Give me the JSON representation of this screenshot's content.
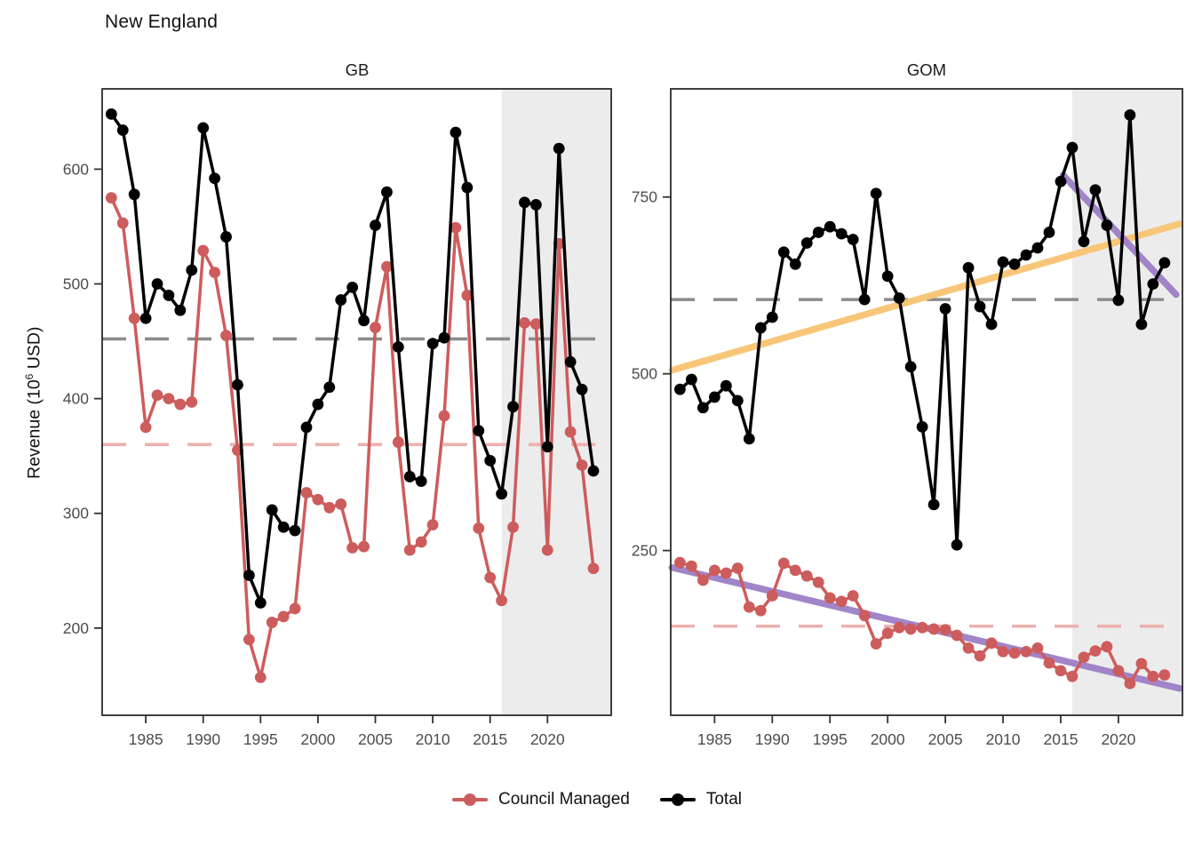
{
  "title": "New England",
  "y_axis_label": {
    "prefix": "Revenue (10",
    "sup": "6",
    "suffix": " USD)"
  },
  "legend": [
    {
      "label": "Council Managed",
      "color": "#CD5C5C"
    },
    {
      "label": "Total",
      "color": "#000000"
    }
  ],
  "colors": {
    "council": "#CD5C5C",
    "total": "#000000",
    "council_mean_dash": "#EEB0AF",
    "total_mean_dash": "#8C8C8C",
    "trend_orange": "#F8C471",
    "trend_purple": "#9D7FC7",
    "highlight_fill": "#ECECEC",
    "panel_border": "#2B2B2B",
    "tick_text": "#4D4D4D"
  },
  "chart_data": [
    {
      "type": "line",
      "facet": "GB",
      "title": "GB",
      "xlabel": "",
      "ylabel": "Revenue (10^6 USD)",
      "x_ticks": [
        1985,
        1990,
        1995,
        2000,
        2005,
        2010,
        2015,
        2020
      ],
      "y_ticks": [
        200,
        300,
        400,
        500,
        600
      ],
      "xlim": [
        1981.2,
        2025.55
      ],
      "ylim": [
        124,
        670
      ],
      "grid": false,
      "legend_position": "bottom",
      "highlight_region": {
        "from": 2016,
        "to": 2025.55
      },
      "x": [
        1982,
        1983,
        1984,
        1985,
        1986,
        1987,
        1988,
        1989,
        1990,
        1991,
        1992,
        1993,
        1994,
        1995,
        1996,
        1997,
        1998,
        1999,
        2000,
        2001,
        2002,
        2003,
        2004,
        2005,
        2006,
        2007,
        2008,
        2009,
        2010,
        2011,
        2012,
        2013,
        2014,
        2015,
        2016,
        2017,
        2018,
        2019,
        2020,
        2021,
        2022,
        2023,
        2024
      ],
      "series": [
        {
          "name": "Council Managed",
          "values": [
            575,
            553,
            470,
            375,
            403,
            400,
            395,
            397,
            529,
            510,
            455,
            355,
            190,
            157,
            205,
            210,
            217,
            318,
            312,
            305,
            308,
            270,
            271,
            462,
            515,
            362,
            268,
            275,
            290,
            385,
            549,
            490,
            287,
            244,
            224,
            288,
            466,
            465,
            268,
            535,
            371,
            342,
            252
          ]
        },
        {
          "name": "Total",
          "values": [
            648,
            634,
            578,
            470,
            500,
            490,
            477,
            512,
            636,
            592,
            541,
            412,
            246,
            222,
            303,
            288,
            285,
            375,
            395,
            410,
            486,
            497,
            468,
            551,
            580,
            445,
            332,
            328,
            448,
            453,
            632,
            584,
            372,
            346,
            317,
            393,
            571,
            569,
            358,
            618,
            432,
            408,
            337
          ]
        }
      ],
      "ref_lines": [
        {
          "series": "Total",
          "value": 452,
          "style": "dashed",
          "color_key": "total_mean_dash"
        },
        {
          "series": "Council Managed",
          "value": 360,
          "style": "dashed",
          "color_key": "council_mean_dash"
        }
      ],
      "trend_lines": []
    },
    {
      "type": "line",
      "facet": "GOM",
      "title": "GOM",
      "xlabel": "",
      "ylabel": "Revenue (10^6 USD)",
      "x_ticks": [
        1985,
        1990,
        1995,
        2000,
        2005,
        2010,
        2015,
        2020
      ],
      "y_ticks": [
        250,
        500,
        750
      ],
      "xlim": [
        1981.2,
        2025.55
      ],
      "ylim": [
        17,
        903
      ],
      "grid": false,
      "legend_position": "bottom",
      "highlight_region": {
        "from": 2016,
        "to": 2025.55
      },
      "x": [
        1982,
        1983,
        1984,
        1985,
        1986,
        1987,
        1988,
        1989,
        1990,
        1991,
        1992,
        1993,
        1994,
        1995,
        1996,
        1997,
        1998,
        1999,
        2000,
        2001,
        2002,
        2003,
        2004,
        2005,
        2006,
        2007,
        2008,
        2009,
        2010,
        2011,
        2012,
        2013,
        2014,
        2015,
        2016,
        2017,
        2018,
        2019,
        2020,
        2021,
        2022,
        2023,
        2024
      ],
      "series": [
        {
          "name": "Council Managed",
          "values": [
            233,
            228,
            208,
            222,
            218,
            225,
            170,
            165,
            186,
            232,
            222,
            214,
            205,
            183,
            178,
            186,
            158,
            118,
            133,
            141,
            139,
            141,
            139,
            138,
            130,
            112,
            101,
            119,
            107,
            105,
            107,
            112,
            91,
            80,
            72,
            99,
            108,
            114,
            80,
            62,
            90,
            72,
            74
          ]
        },
        {
          "name": "Total",
          "values": [
            478,
            492,
            452,
            467,
            483,
            462,
            408,
            565,
            580,
            672,
            655,
            685,
            700,
            708,
            698,
            690,
            605,
            755,
            638,
            607,
            510,
            425,
            315,
            592,
            258,
            650,
            595,
            570,
            658,
            655,
            668,
            678,
            700,
            772,
            820,
            687,
            760,
            710,
            604,
            866,
            570,
            627,
            657
          ]
        }
      ],
      "ref_lines": [
        {
          "series": "Total",
          "value": 605,
          "style": "dashed",
          "color_key": "total_mean_dash"
        },
        {
          "series": "Council Managed",
          "value": 143,
          "style": "dashed",
          "color_key": "council_mean_dash"
        }
      ],
      "trend_lines": [
        {
          "name": "total-trend",
          "color_key": "trend_orange",
          "from": [
            1981.3,
            505
          ],
          "to": [
            2025.3,
            712
          ]
        },
        {
          "name": "council-trend",
          "color_key": "trend_purple",
          "from": [
            1981.3,
            226
          ],
          "to": [
            2025.3,
            55
          ]
        },
        {
          "name": "total-recent-trend",
          "color_key": "trend_purple",
          "from": [
            2015.2,
            781
          ],
          "to": [
            2025.0,
            612
          ]
        }
      ]
    }
  ]
}
